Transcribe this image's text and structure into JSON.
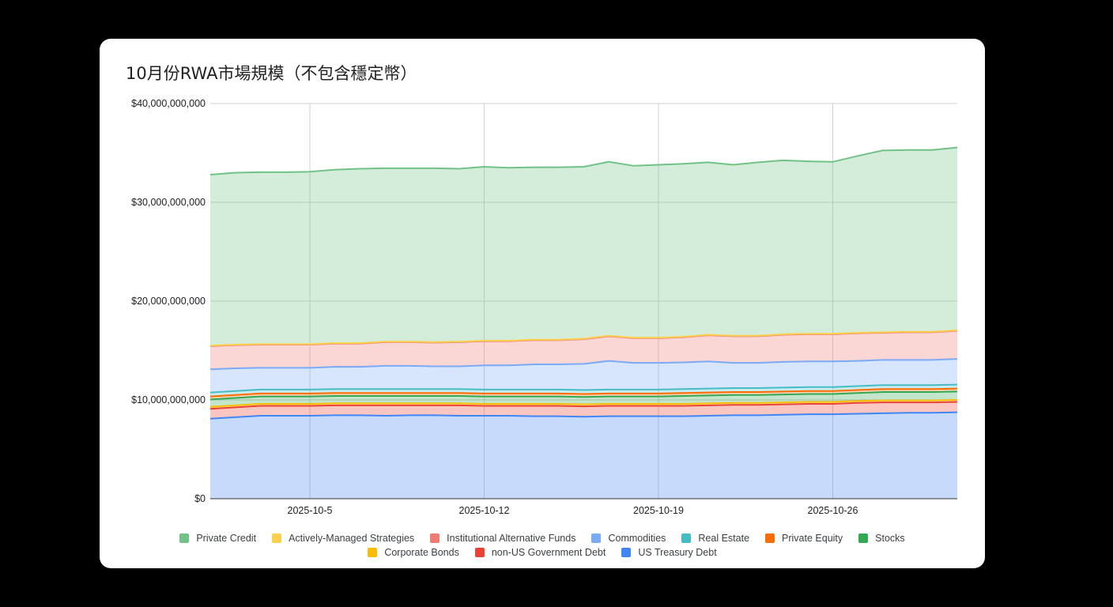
{
  "chart_data": {
    "type": "area",
    "stacked": true,
    "title": "10月份RWA市場規模（不包含穩定幣）",
    "xlabel": "",
    "ylabel": "",
    "ylim": [
      0,
      40000000000
    ],
    "y_ticks": [
      0,
      10000000000,
      20000000000,
      30000000000,
      40000000000
    ],
    "y_tick_labels": [
      "$0",
      "$10,000,000,000",
      "$20,000,000,000",
      "$30,000,000,000",
      "$40,000,000,000"
    ],
    "x": [
      "2025-10-1",
      "2025-10-2",
      "2025-10-3",
      "2025-10-4",
      "2025-10-5",
      "2025-10-6",
      "2025-10-7",
      "2025-10-8",
      "2025-10-9",
      "2025-10-10",
      "2025-10-11",
      "2025-10-12",
      "2025-10-13",
      "2025-10-14",
      "2025-10-15",
      "2025-10-16",
      "2025-10-17",
      "2025-10-18",
      "2025-10-19",
      "2025-10-20",
      "2025-10-21",
      "2025-10-22",
      "2025-10-23",
      "2025-10-24",
      "2025-10-25",
      "2025-10-26",
      "2025-10-27",
      "2025-10-28",
      "2025-10-29",
      "2025-10-30",
      "2025-10-31"
    ],
    "x_tick_labels": [
      "2025-10-5",
      "2025-10-12",
      "2025-10-19",
      "2025-10-26"
    ],
    "grid": true,
    "legend_position": "bottom",
    "legend_order": [
      "Private Credit",
      "Actively-Managed Strategies",
      "Institutional Alternative Funds",
      "Commodities",
      "Real Estate",
      "Private Equity",
      "Stocks",
      "Corporate Bonds",
      "non-US Government Debt",
      "US Treasury Debt"
    ],
    "series": [
      {
        "name": "US Treasury Debt",
        "color": "#4285f4",
        "values": [
          8.1,
          8.25,
          8.4,
          8.4,
          8.4,
          8.45,
          8.45,
          8.4,
          8.45,
          8.45,
          8.4,
          8.4,
          8.4,
          8.35,
          8.35,
          8.3,
          8.35,
          8.35,
          8.35,
          8.35,
          8.4,
          8.45,
          8.45,
          8.5,
          8.55,
          8.55,
          8.6,
          8.65,
          8.7,
          8.7,
          8.75
        ]
      },
      {
        "name": "non-US Government Debt",
        "color": "#ea4335",
        "values": [
          1.0,
          1.0,
          1.0,
          1.0,
          1.0,
          1.0,
          1.0,
          1.05,
          1.0,
          1.0,
          1.05,
          1.0,
          1.0,
          1.05,
          1.05,
          1.05,
          1.05,
          1.05,
          1.05,
          1.05,
          1.05,
          1.05,
          1.05,
          1.05,
          1.05,
          1.05,
          1.1,
          1.1,
          1.05,
          1.05,
          1.05
        ]
      },
      {
        "name": "Corporate Bonds",
        "color": "#fbbc04",
        "values": [
          0.2,
          0.2,
          0.2,
          0.2,
          0.2,
          0.2,
          0.2,
          0.2,
          0.2,
          0.2,
          0.2,
          0.2,
          0.2,
          0.2,
          0.2,
          0.2,
          0.2,
          0.2,
          0.2,
          0.2,
          0.2,
          0.2,
          0.2,
          0.2,
          0.2,
          0.2,
          0.2,
          0.2,
          0.2,
          0.2,
          0.2
        ]
      },
      {
        "name": "Stocks",
        "color": "#34a853",
        "values": [
          0.75,
          0.75,
          0.75,
          0.75,
          0.75,
          0.75,
          0.75,
          0.75,
          0.75,
          0.75,
          0.75,
          0.75,
          0.75,
          0.75,
          0.75,
          0.75,
          0.75,
          0.75,
          0.75,
          0.8,
          0.8,
          0.8,
          0.8,
          0.8,
          0.8,
          0.8,
          0.8,
          0.85,
          0.85,
          0.85,
          0.85
        ]
      },
      {
        "name": "Private Equity",
        "color": "#ff6d01",
        "values": [
          0.3,
          0.3,
          0.3,
          0.3,
          0.3,
          0.3,
          0.3,
          0.3,
          0.3,
          0.3,
          0.3,
          0.3,
          0.3,
          0.3,
          0.3,
          0.3,
          0.3,
          0.3,
          0.3,
          0.3,
          0.3,
          0.3,
          0.3,
          0.3,
          0.3,
          0.3,
          0.3,
          0.3,
          0.3,
          0.3,
          0.3
        ]
      },
      {
        "name": "Real Estate",
        "color": "#46bdc6",
        "values": [
          0.4,
          0.4,
          0.4,
          0.4,
          0.4,
          0.4,
          0.4,
          0.4,
          0.4,
          0.4,
          0.4,
          0.4,
          0.4,
          0.4,
          0.4,
          0.4,
          0.4,
          0.4,
          0.4,
          0.4,
          0.4,
          0.4,
          0.4,
          0.4,
          0.4,
          0.4,
          0.4,
          0.4,
          0.4,
          0.4,
          0.4
        ]
      },
      {
        "name": "Commodities",
        "color": "#7baaf7",
        "values": [
          2.35,
          2.3,
          2.2,
          2.2,
          2.2,
          2.25,
          2.25,
          2.35,
          2.35,
          2.3,
          2.3,
          2.45,
          2.45,
          2.55,
          2.55,
          2.65,
          2.9,
          2.7,
          2.7,
          2.7,
          2.75,
          2.55,
          2.55,
          2.6,
          2.6,
          2.6,
          2.55,
          2.55,
          2.55,
          2.55,
          2.6
        ]
      },
      {
        "name": "Institutional Alternative Funds",
        "color": "#f07b72",
        "values": [
          2.35,
          2.35,
          2.35,
          2.35,
          2.35,
          2.35,
          2.35,
          2.4,
          2.4,
          2.4,
          2.45,
          2.45,
          2.45,
          2.45,
          2.45,
          2.5,
          2.5,
          2.5,
          2.5,
          2.55,
          2.65,
          2.7,
          2.7,
          2.75,
          2.75,
          2.75,
          2.8,
          2.75,
          2.8,
          2.8,
          2.85
        ]
      },
      {
        "name": "Actively-Managed Strategies",
        "color": "#fcd04f",
        "values": [
          0.05,
          0.05,
          0.05,
          0.05,
          0.05,
          0.05,
          0.05,
          0.05,
          0.05,
          0.05,
          0.05,
          0.05,
          0.05,
          0.05,
          0.05,
          0.05,
          0.05,
          0.05,
          0.05,
          0.05,
          0.05,
          0.05,
          0.05,
          0.05,
          0.05,
          0.05,
          0.05,
          0.05,
          0.05,
          0.05,
          0.05
        ]
      },
      {
        "name": "Private Credit",
        "color": "#71c287",
        "values": [
          17.3,
          17.4,
          17.4,
          17.4,
          17.45,
          17.55,
          17.65,
          17.55,
          17.55,
          17.6,
          17.5,
          17.6,
          17.5,
          17.45,
          17.45,
          17.4,
          17.6,
          17.4,
          17.5,
          17.5,
          17.45,
          17.3,
          17.55,
          17.6,
          17.45,
          17.4,
          17.9,
          18.4,
          18.4,
          18.4,
          18.5
        ]
      }
    ],
    "value_unit": "billion USD"
  }
}
